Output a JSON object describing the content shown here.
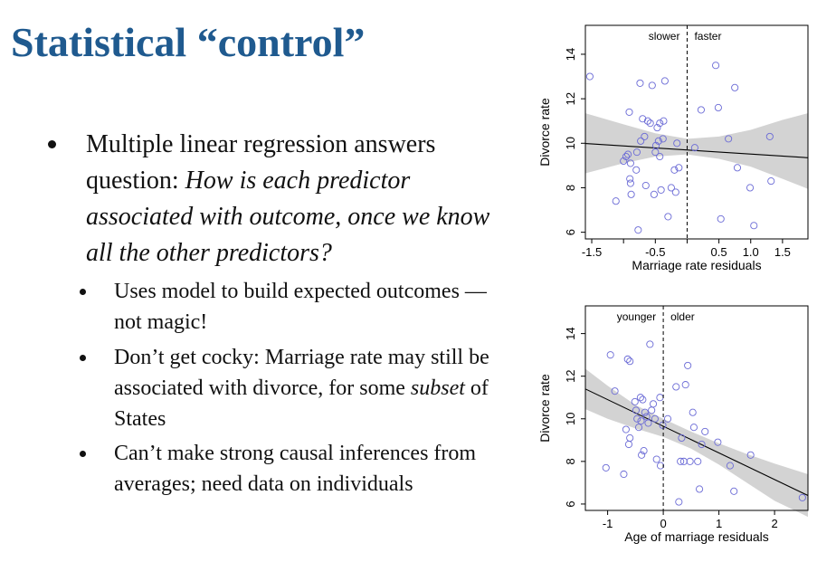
{
  "slide": {
    "title": "Statistical “control”",
    "bullets": [
      {
        "parts": [
          "Multiple linear regression answers question: ",
          "How is each predictor associated with outcome, once we know all the other predictors?"
        ]
      }
    ],
    "subbullets": [
      {
        "parts": [
          "Uses model to build expected outcomes — not magic!"
        ]
      },
      {
        "parts": [
          "Don’t get cocky: Marriage rate may still be associated with divorce, for some ",
          "subset",
          " of States"
        ]
      },
      {
        "parts": [
          "Can’t make strong causal inferences from averages; need data on individuals"
        ]
      }
    ]
  },
  "colors": {
    "title": "#1f5a8f",
    "points": "#6b6bd6",
    "band": "#d3d3d3"
  },
  "chart_data": [
    {
      "type": "scatter",
      "xlabel": "Marriage rate residuals",
      "ylabel": "Divorce rate",
      "xlim": [
        -1.6,
        1.9
      ],
      "ylim": [
        5.7,
        15.3
      ],
      "xticks": [
        -1.5,
        -0.5,
        0.5,
        1.0,
        1.5
      ],
      "xtick_labels": [
        "-1.5",
        "-0.5",
        "0.5",
        "1.0",
        "1.5"
      ],
      "xticks_minor": [
        -1.0,
        0.0
      ],
      "yticks": [
        6,
        8,
        10,
        12,
        14
      ],
      "ytick_labels": [
        "6",
        "8",
        "10",
        "12",
        "14"
      ],
      "vline": 0,
      "annotations": {
        "left": "slower",
        "right": "faster"
      },
      "fit": {
        "x": [
          -1.6,
          1.9
        ],
        "y": [
          9.99,
          9.35
        ]
      },
      "band": {
        "x": [
          -1.6,
          -1.0,
          -0.5,
          0.0,
          0.5,
          1.0,
          1.5,
          1.9
        ],
        "upper": [
          11.35,
          10.85,
          10.45,
          10.2,
          10.3,
          10.6,
          11.05,
          11.35
        ],
        "lower": [
          8.65,
          9.1,
          9.4,
          9.5,
          9.3,
          8.95,
          8.4,
          7.95
        ]
      },
      "points": [
        [
          -1.53,
          13.0
        ],
        [
          -1.12,
          7.4
        ],
        [
          -1.0,
          9.2
        ],
        [
          -0.96,
          9.4
        ],
        [
          -0.93,
          9.5
        ],
        [
          -0.91,
          11.4
        ],
        [
          -0.9,
          8.4
        ],
        [
          -0.89,
          8.2
        ],
        [
          -0.89,
          9.1
        ],
        [
          -0.88,
          7.7
        ],
        [
          -0.8,
          8.8
        ],
        [
          -0.79,
          9.6
        ],
        [
          -0.77,
          6.1
        ],
        [
          -0.74,
          12.7
        ],
        [
          -0.73,
          10.1
        ],
        [
          -0.7,
          11.1
        ],
        [
          -0.67,
          10.3
        ],
        [
          -0.65,
          8.1
        ],
        [
          -0.62,
          11.0
        ],
        [
          -0.58,
          10.9
        ],
        [
          -0.55,
          12.6
        ],
        [
          -0.52,
          7.7
        ],
        [
          -0.5,
          9.6
        ],
        [
          -0.49,
          9.9
        ],
        [
          -0.47,
          10.7
        ],
        [
          -0.45,
          10.1
        ],
        [
          -0.43,
          10.9
        ],
        [
          -0.43,
          9.4
        ],
        [
          -0.41,
          7.9
        ],
        [
          -0.38,
          10.2
        ],
        [
          -0.37,
          11.0
        ],
        [
          -0.35,
          12.8
        ],
        [
          -0.3,
          6.7
        ],
        [
          -0.25,
          8.0
        ],
        [
          -0.2,
          8.8
        ],
        [
          -0.18,
          7.8
        ],
        [
          -0.16,
          10.0
        ],
        [
          -0.13,
          8.9
        ],
        [
          0.12,
          9.8
        ],
        [
          0.22,
          11.5
        ],
        [
          0.45,
          13.5
        ],
        [
          0.49,
          11.6
        ],
        [
          0.53,
          6.6
        ],
        [
          0.65,
          10.2
        ],
        [
          0.75,
          12.5
        ],
        [
          0.79,
          8.9
        ],
        [
          0.99,
          8.0
        ],
        [
          1.05,
          6.3
        ],
        [
          1.3,
          10.3
        ],
        [
          1.32,
          8.3
        ]
      ]
    },
    {
      "type": "scatter",
      "xlabel": "Age of marriage residuals",
      "ylabel": "Divorce rate",
      "xlim": [
        -1.4,
        2.6
      ],
      "ylim": [
        5.7,
        15.3
      ],
      "xticks": [
        -1,
        0,
        1,
        2
      ],
      "xtick_labels": [
        "-1",
        "0",
        "1",
        "2"
      ],
      "xticks_minor": [],
      "yticks": [
        6,
        8,
        10,
        12,
        14
      ],
      "ytick_labels": [
        "6",
        "8",
        "10",
        "12",
        "14"
      ],
      "vline": 0,
      "annotations": {
        "left": "younger",
        "right": "older"
      },
      "fit": {
        "x": [
          -1.4,
          2.6
        ],
        "y": [
          11.4,
          6.4
        ]
      },
      "band": {
        "x": [
          -1.4,
          -1.0,
          -0.5,
          0.0,
          0.5,
          1.0,
          1.5,
          2.0,
          2.6
        ],
        "upper": [
          12.35,
          11.55,
          10.65,
          10.0,
          9.4,
          8.85,
          8.35,
          7.9,
          7.4
        ],
        "lower": [
          10.45,
          10.0,
          9.55,
          9.15,
          8.6,
          7.85,
          7.0,
          6.15,
          5.4
        ]
      },
      "points": [
        [
          -1.03,
          7.7
        ],
        [
          -0.95,
          13.0
        ],
        [
          -0.87,
          11.3
        ],
        [
          -0.71,
          7.4
        ],
        [
          -0.67,
          9.5
        ],
        [
          -0.64,
          12.8
        ],
        [
          -0.62,
          8.8
        ],
        [
          -0.6,
          12.7
        ],
        [
          -0.6,
          9.1
        ],
        [
          -0.51,
          10.8
        ],
        [
          -0.49,
          10.4
        ],
        [
          -0.47,
          10.0
        ],
        [
          -0.44,
          9.6
        ],
        [
          -0.41,
          11.0
        ],
        [
          -0.4,
          9.9
        ],
        [
          -0.39,
          8.3
        ],
        [
          -0.37,
          10.9
        ],
        [
          -0.35,
          8.5
        ],
        [
          -0.33,
          10.3
        ],
        [
          -0.3,
          10.1
        ],
        [
          -0.27,
          9.8
        ],
        [
          -0.24,
          13.5
        ],
        [
          -0.21,
          10.4
        ],
        [
          -0.18,
          10.7
        ],
        [
          -0.15,
          10.0
        ],
        [
          -0.12,
          8.1
        ],
        [
          -0.06,
          11.0
        ],
        [
          -0.05,
          7.8
        ],
        [
          -0.01,
          9.7
        ],
        [
          0.08,
          10.0
        ],
        [
          0.23,
          11.5
        ],
        [
          0.28,
          6.1
        ],
        [
          0.31,
          8.0
        ],
        [
          0.33,
          9.1
        ],
        [
          0.37,
          8.0
        ],
        [
          0.4,
          11.6
        ],
        [
          0.44,
          12.5
        ],
        [
          0.48,
          8.0
        ],
        [
          0.53,
          10.3
        ],
        [
          0.55,
          9.6
        ],
        [
          0.62,
          8.0
        ],
        [
          0.65,
          6.7
        ],
        [
          0.69,
          8.8
        ],
        [
          0.75,
          9.4
        ],
        [
          0.98,
          8.9
        ],
        [
          1.2,
          7.8
        ],
        [
          1.27,
          6.6
        ],
        [
          1.57,
          8.3
        ],
        [
          2.5,
          6.3
        ]
      ]
    }
  ]
}
